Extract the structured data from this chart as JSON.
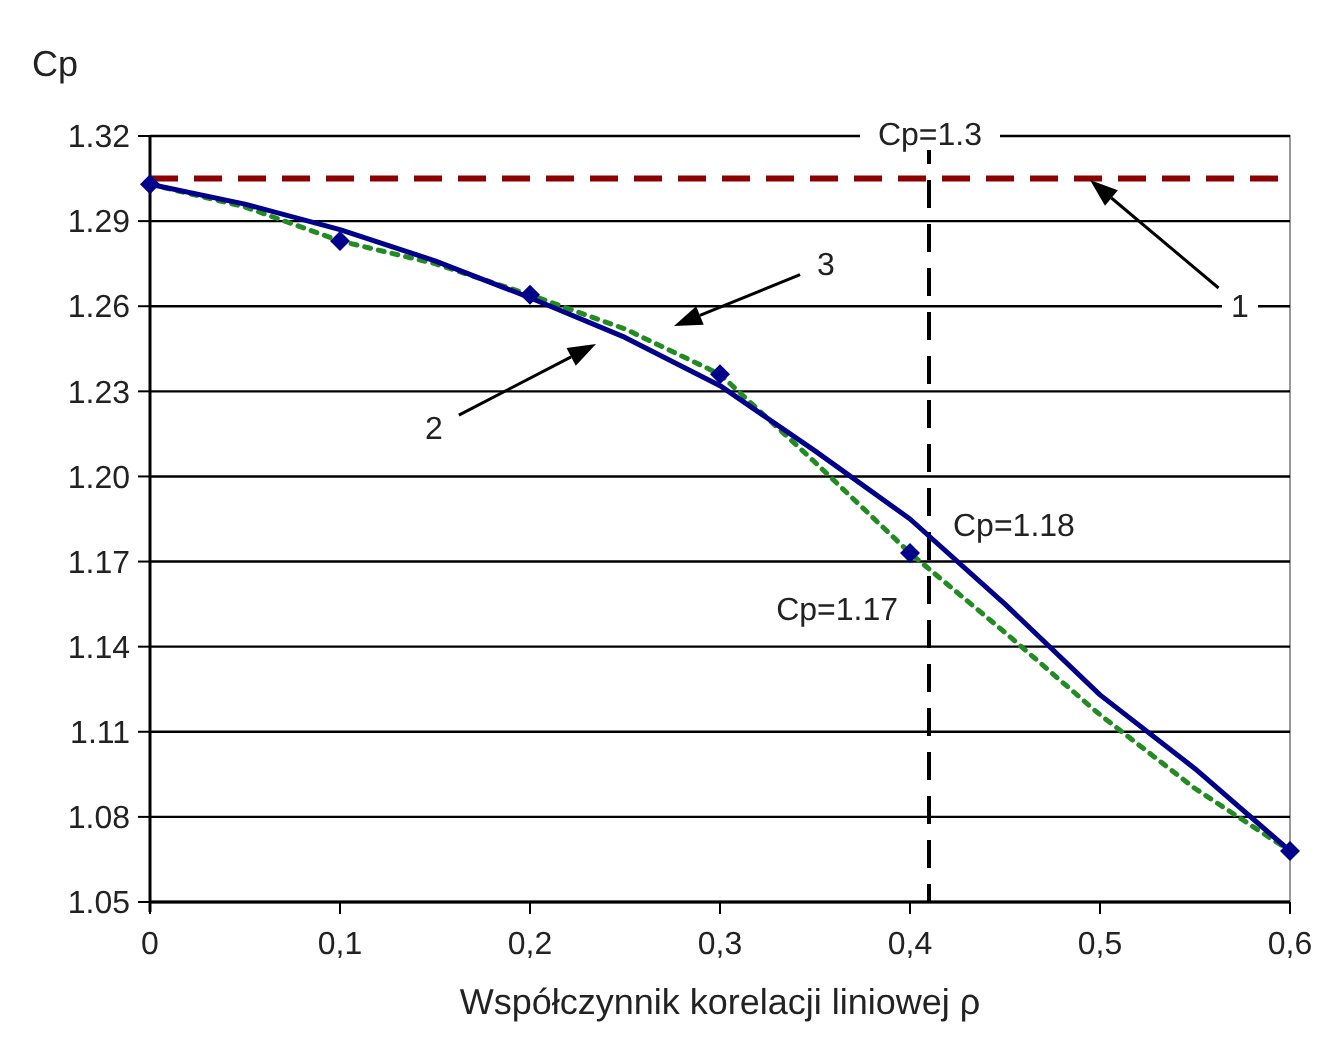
{
  "chart_data": {
    "type": "line",
    "xlabel": "Współczynnik korelacji liniowej ρ",
    "ylabel": "Cp",
    "xlim": [
      0,
      0.6
    ],
    "xticks": [
      {
        "value": 0,
        "label": "0"
      },
      {
        "value": 0.1,
        "label": "0,1"
      },
      {
        "value": 0.2,
        "label": "0,2"
      },
      {
        "value": 0.3,
        "label": "0,3"
      },
      {
        "value": 0.4,
        "label": "0,4"
      },
      {
        "value": 0.5,
        "label": "0,5"
      },
      {
        "value": 0.6,
        "label": "0,6"
      }
    ],
    "ylim": [
      1.05,
      1.32
    ],
    "yticks": [
      1.05,
      1.08,
      1.11,
      1.14,
      1.17,
      {
        "value": 1.2,
        "label": "1.20"
      },
      1.23,
      1.26,
      1.29,
      1.32
    ],
    "grid": "y",
    "series": [
      {
        "type": "line",
        "color": "#228b22",
        "line_style": "dotted",
        "marker": "none",
        "x": [
          0,
          0.05,
          0.1,
          0.15,
          0.2,
          0.25,
          0.3,
          0.35,
          0.4,
          0.45,
          0.5,
          0.55,
          0.6
        ],
        "values": [
          1.303,
          1.295,
          1.283,
          1.275,
          1.264,
          1.252,
          1.236,
          1.205,
          1.173,
          1.145,
          1.116,
          1.09,
          1.068
        ]
      },
      {
        "type": "line",
        "color": "#00008b",
        "line_style": "solid",
        "marker": "none",
        "x": [
          0,
          0.05,
          0.1,
          0.15,
          0.2,
          0.25,
          0.3,
          0.35,
          0.4,
          0.45,
          0.5,
          0.55,
          0.6
        ],
        "values": [
          1.303,
          1.296,
          1.287,
          1.276,
          1.263,
          1.249,
          1.232,
          1.209,
          1.185,
          1.155,
          1.123,
          1.097,
          1.068
        ]
      },
      {
        "type": "scatter",
        "color": "#00008b",
        "marker": "diamond",
        "x": [
          0,
          0.1,
          0.2,
          0.3,
          0.4,
          0.6
        ],
        "values": [
          1.303,
          1.283,
          1.264,
          1.236,
          1.173,
          1.068
        ]
      }
    ],
    "ref_lines": [
      {
        "axis": "y",
        "value": 1.305,
        "color": "#8b0000",
        "line_style": "dashed"
      },
      {
        "axis": "x",
        "value": 0.41,
        "color": "#000000",
        "line_style": "dashed"
      }
    ],
    "annotations": [
      {
        "text": "Cp=1.18",
        "x": 0.41,
        "y": 1.18
      },
      {
        "text": "Cp=1.17",
        "x": 0.4,
        "y": 1.173
      },
      "1",
      "2",
      "3",
      "Cp=1.3"
    ]
  }
}
